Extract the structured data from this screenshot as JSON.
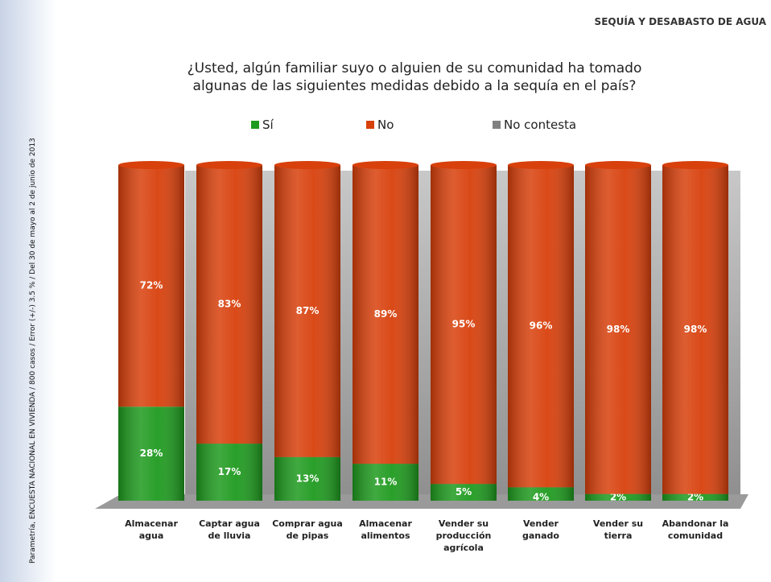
{
  "chart_data": {
    "type": "stacked-bar",
    "title": "¿Usted, algún familiar suyo o alguien de su comunidad ha tomado algunas de las siguientes medidas debido a la sequía en el país?",
    "subtitle": "SEQUÍA Y DESABASTO DE AGUA",
    "source": "Parametría, ENCUESTA NACIONAL EN VIVIENDA / 800 casos / Error (+/-) 3.5 % / Del 30 de mayo al 2 de junio de 2013",
    "categories": [
      "Almacenar agua",
      "Captar agua de lluvia",
      "Comprar agua de pipas",
      "Almacenar alimentos",
      "Vender su producción agrícola",
      "Vender ganado",
      "Vender su tierra",
      "Abandonar la comunidad"
    ],
    "series": [
      {
        "name": "Sí",
        "color": "#1e9a1e",
        "values": [
          28,
          17,
          13,
          11,
          5,
          4,
          2,
          2
        ],
        "value_labels": [
          "28%",
          "17%",
          "13%",
          "11%",
          "5%",
          "4%",
          "2%",
          "2%"
        ]
      },
      {
        "name": "No",
        "color": "#d8400c",
        "values": [
          72,
          83,
          87,
          89,
          95,
          96,
          98,
          98
        ],
        "value_labels": [
          "72%",
          "83%",
          "87%",
          "89%",
          "95%",
          "96%",
          "98%",
          "98%"
        ]
      },
      {
        "name": "No contesta",
        "color": "#808080",
        "values": [
          0,
          0,
          0,
          0,
          0,
          0,
          0,
          0
        ]
      }
    ],
    "ylim": [
      0,
      100
    ]
  }
}
